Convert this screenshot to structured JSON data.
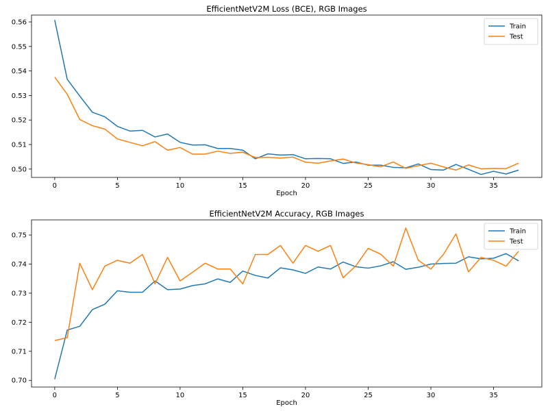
{
  "chart_data": [
    {
      "type": "line",
      "title": "EfficientNetV2M Loss (BCE), RGB Images",
      "xlabel": "Epoch",
      "ylabel": "",
      "xlim": [
        -1.85,
        38.85
      ],
      "ylim": [
        0.4966,
        0.5628
      ],
      "xticks": [
        0,
        5,
        10,
        15,
        20,
        25,
        30,
        35
      ],
      "yticks": [
        0.5,
        0.51,
        0.52,
        0.53,
        0.54,
        0.55,
        0.56
      ],
      "ytick_labels": [
        "0.50",
        "0.51",
        "0.52",
        "0.53",
        "0.54",
        "0.55",
        "0.56"
      ],
      "legend": "top-right",
      "x": [
        0,
        1,
        2,
        3,
        4,
        5,
        6,
        7,
        8,
        9,
        10,
        11,
        12,
        13,
        14,
        15,
        16,
        17,
        18,
        19,
        20,
        21,
        22,
        23,
        24,
        25,
        26,
        27,
        28,
        29,
        30,
        31,
        32,
        33,
        34,
        35,
        36,
        37
      ],
      "series": [
        {
          "name": "Train",
          "color": "#1f77b4",
          "values": [
            0.5608,
            0.5366,
            0.5298,
            0.5232,
            0.5213,
            0.5174,
            0.5155,
            0.5158,
            0.5131,
            0.5143,
            0.5109,
            0.5098,
            0.5099,
            0.5084,
            0.5084,
            0.5077,
            0.5042,
            0.5062,
            0.5057,
            0.5059,
            0.5042,
            0.5043,
            0.5042,
            0.5023,
            0.5029,
            0.5016,
            0.5016,
            0.5007,
            0.5005,
            0.5021,
            0.4998,
            0.4996,
            0.5019,
            0.4999,
            0.4978,
            0.4991,
            0.498,
            0.4996
          ]
        },
        {
          "name": "Test",
          "color": "#ff7f0e",
          "values": [
            0.5375,
            0.5305,
            0.5202,
            0.5177,
            0.5163,
            0.5123,
            0.5109,
            0.5095,
            0.5112,
            0.5077,
            0.5088,
            0.5061,
            0.5061,
            0.5073,
            0.5064,
            0.5069,
            0.5047,
            0.5048,
            0.5045,
            0.5049,
            0.5028,
            0.5024,
            0.5033,
            0.5041,
            0.5025,
            0.5018,
            0.5009,
            0.5029,
            0.5003,
            0.5014,
            0.5024,
            0.5009,
            0.4996,
            0.5017,
            0.5001,
            0.5003,
            0.5002,
            0.5024
          ]
        }
      ]
    },
    {
      "type": "line",
      "title": "EfficientNetV2M Accuracy, RGB Images",
      "xlabel": "Epoch",
      "ylabel": "",
      "xlim": [
        -1.85,
        38.85
      ],
      "ylim": [
        0.6977,
        0.7552
      ],
      "xticks": [
        0,
        5,
        10,
        15,
        20,
        25,
        30,
        35
      ],
      "yticks": [
        0.7,
        0.71,
        0.72,
        0.73,
        0.74,
        0.75
      ],
      "ytick_labels": [
        "0.70",
        "0.71",
        "0.72",
        "0.73",
        "0.74",
        "0.75"
      ],
      "legend": "top-right",
      "x": [
        0,
        1,
        2,
        3,
        4,
        5,
        6,
        7,
        8,
        9,
        10,
        11,
        12,
        13,
        14,
        15,
        16,
        17,
        18,
        19,
        20,
        21,
        22,
        23,
        24,
        25,
        26,
        27,
        28,
        29,
        30,
        31,
        32,
        33,
        34,
        35,
        36,
        37
      ],
      "series": [
        {
          "name": "Train",
          "color": "#1f77b4",
          "values": [
            0.7004,
            0.7173,
            0.7186,
            0.7243,
            0.7262,
            0.7308,
            0.7303,
            0.7303,
            0.7342,
            0.7312,
            0.7314,
            0.7326,
            0.7332,
            0.7349,
            0.7337,
            0.7376,
            0.7361,
            0.7352,
            0.7387,
            0.738,
            0.7368,
            0.739,
            0.7383,
            0.7407,
            0.7391,
            0.7386,
            0.7394,
            0.7408,
            0.7382,
            0.7389,
            0.74,
            0.7402,
            0.7403,
            0.7425,
            0.7418,
            0.742,
            0.7436,
            0.7411
          ]
        },
        {
          "name": "Test",
          "color": "#ff7f0e",
          "values": [
            0.7137,
            0.7147,
            0.7403,
            0.7312,
            0.7393,
            0.7413,
            0.7403,
            0.7433,
            0.7332,
            0.7423,
            0.7342,
            0.7372,
            0.7403,
            0.7383,
            0.7383,
            0.7332,
            0.7433,
            0.7433,
            0.7464,
            0.7403,
            0.7464,
            0.7444,
            0.7464,
            0.7353,
            0.7393,
            0.7454,
            0.7434,
            0.7393,
            0.7524,
            0.7413,
            0.7383,
            0.7433,
            0.7504,
            0.7373,
            0.7423,
            0.7413,
            0.7393,
            0.7444
          ]
        }
      ]
    }
  ]
}
